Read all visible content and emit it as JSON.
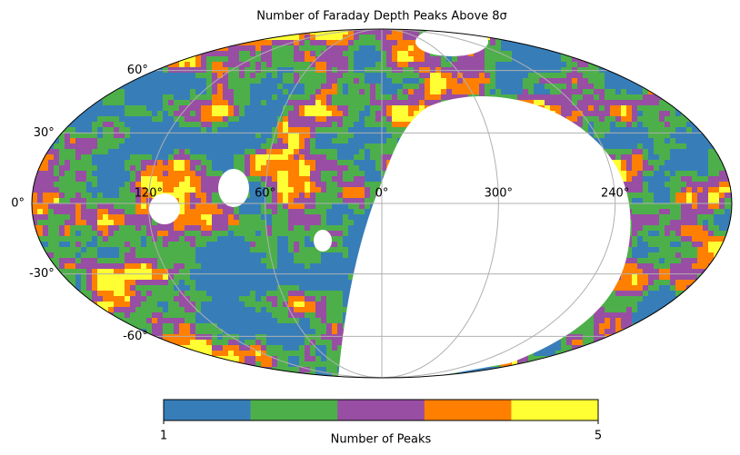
{
  "chart_data": {
    "type": "mollweide",
    "title": "Number of Faraday Depth Peaks Above 8σ",
    "grid": true,
    "lat_ticks": [
      {
        "value": 60,
        "label": "60°"
      },
      {
        "value": 30,
        "label": "30°"
      },
      {
        "value": 0,
        "label": "0°"
      },
      {
        "value": -30,
        "label": "-30°"
      },
      {
        "value": -60,
        "label": "-60°"
      }
    ],
    "lon_ticks": [
      {
        "value": 120,
        "label": "120°"
      },
      {
        "value": 60,
        "label": "60°"
      },
      {
        "value": 0,
        "label": "0°"
      },
      {
        "value": 300,
        "label": "300°"
      },
      {
        "value": 240,
        "label": "240°"
      }
    ],
    "colorbar": {
      "label": "Number of Peaks",
      "lim": [
        1,
        5
      ],
      "ticks": [
        1,
        5
      ],
      "colors": [
        "#377eb8",
        "#4daf4a",
        "#984ea3",
        "#ff7f00",
        "#ffff33"
      ]
    }
  }
}
